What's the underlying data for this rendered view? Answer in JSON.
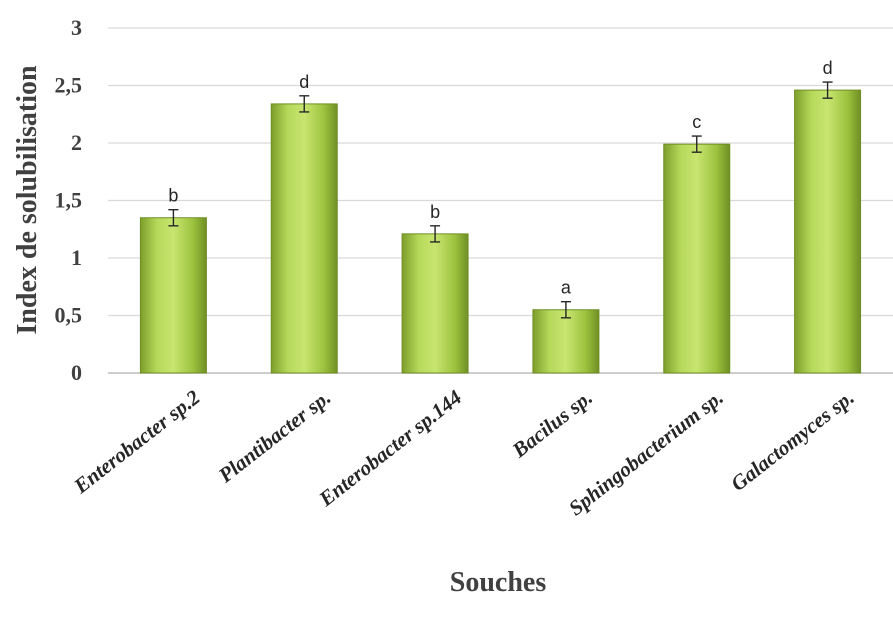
{
  "chart_data": {
    "type": "bar",
    "categories": [
      "Enterobacter sp.2",
      "Plantibacter sp.",
      "Enterobacter sp.144",
      "Bacilus  sp.",
      "Sphingobacterium sp.",
      "Galactomyces sp."
    ],
    "values": [
      1.35,
      2.34,
      1.21,
      0.55,
      1.99,
      2.46
    ],
    "errors": [
      0.07,
      0.07,
      0.07,
      0.07,
      0.07,
      0.07
    ],
    "significance_labels": [
      "b",
      "d",
      "b",
      "a",
      "c",
      "d"
    ],
    "title": "",
    "xlabel": "Souches",
    "ylabel": "Index de solubilisation",
    "ylim": [
      0,
      3
    ],
    "yticks": [
      "0",
      "0,5",
      "1",
      "1,5",
      "2",
      "2,5",
      "3"
    ],
    "grid": true,
    "legend": "none",
    "colors": {
      "bar_light": "#c4e36a",
      "bar_mid": "#9bc23c",
      "bar_dark": "#6f8f24",
      "gridline": "#d9d9d9"
    }
  }
}
